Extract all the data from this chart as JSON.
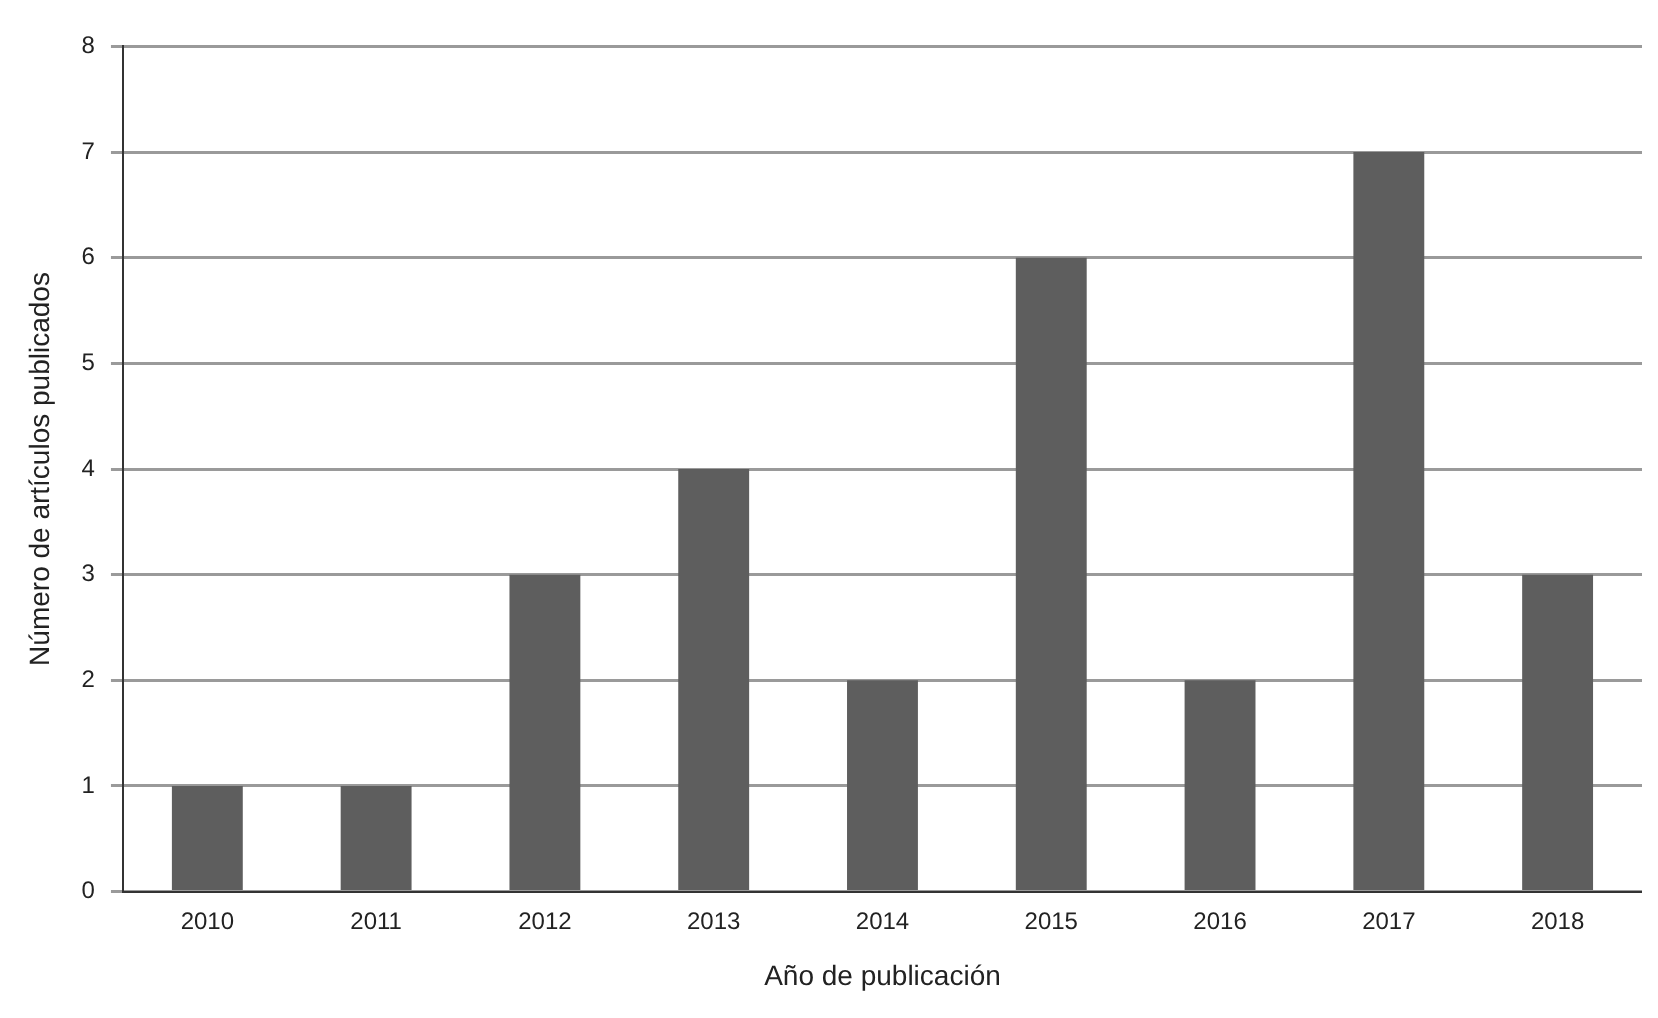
{
  "chart_data": {
    "type": "bar",
    "xlabel": "Año de publicación",
    "ylabel": "Número de artículos publicados",
    "categories": [
      "2010",
      "2011",
      "2012",
      "2013",
      "2014",
      "2015",
      "2016",
      "2017",
      "2018"
    ],
    "values": [
      1,
      1,
      3,
      4,
      2,
      6,
      2,
      7,
      3
    ],
    "color": "#5e5e5e",
    "ylim": [
      0,
      8
    ],
    "yticks": [
      0,
      1,
      2,
      3,
      4,
      5,
      6,
      7,
      8
    ],
    "grid": "y"
  }
}
